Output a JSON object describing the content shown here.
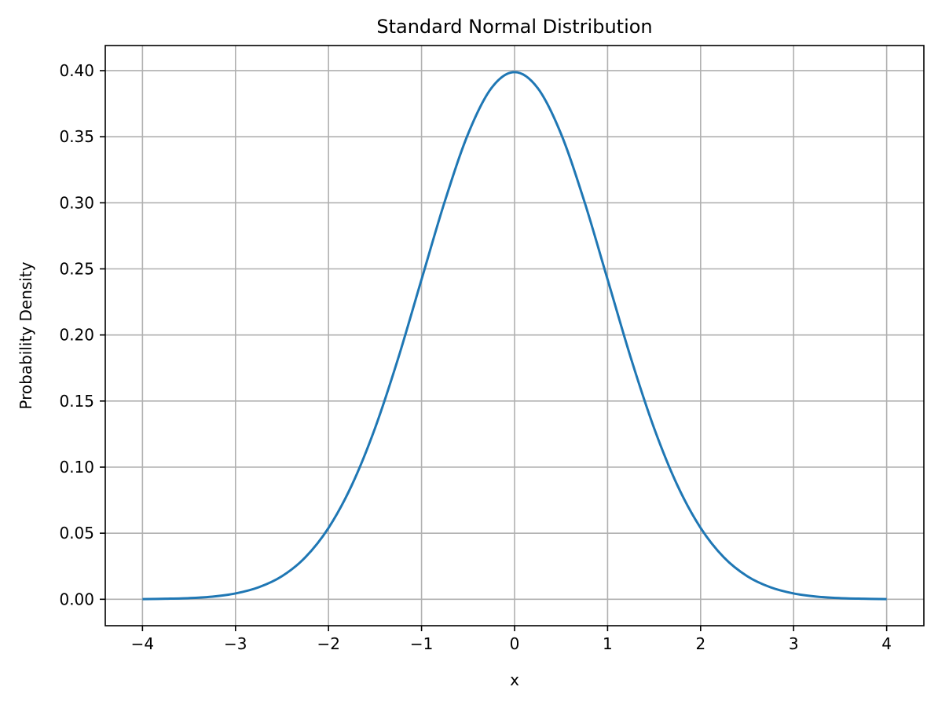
{
  "chart_data": {
    "type": "line",
    "title": "Standard Normal Distribution",
    "xlabel": "x",
    "ylabel": "Probability Density",
    "xlim": [
      -4.4,
      4.4
    ],
    "ylim": [
      -0.02,
      0.419
    ],
    "xticks": [
      -4,
      -3,
      -2,
      -1,
      0,
      1,
      2,
      3,
      4
    ],
    "xtick_labels": [
      "−4",
      "−3",
      "−2",
      "−1",
      "0",
      "1",
      "2",
      "3",
      "4"
    ],
    "yticks": [
      0.0,
      0.05,
      0.1,
      0.15,
      0.2,
      0.25,
      0.3,
      0.35,
      0.4
    ],
    "ytick_labels": [
      "0.00",
      "0.05",
      "0.10",
      "0.15",
      "0.20",
      "0.25",
      "0.30",
      "0.35",
      "0.40"
    ],
    "grid": true,
    "series": [
      {
        "color": "#1f77b4",
        "x": [
          -4.0,
          -3.75,
          -3.5,
          -3.25,
          -3.0,
          -2.75,
          -2.5,
          -2.25,
          -2.0,
          -1.75,
          -1.5,
          -1.25,
          -1.0,
          -0.75,
          -0.5,
          -0.25,
          0.0,
          0.25,
          0.5,
          0.75,
          1.0,
          1.25,
          1.5,
          1.75,
          2.0,
          2.25,
          2.5,
          2.75,
          3.0,
          3.25,
          3.5,
          3.75,
          4.0
        ],
        "y": [
          0.0001,
          0.0004,
          0.0009,
          0.002,
          0.0044,
          0.0091,
          0.0175,
          0.0317,
          0.054,
          0.0863,
          0.1295,
          0.1826,
          0.242,
          0.3011,
          0.3521,
          0.3867,
          0.3989,
          0.3867,
          0.3521,
          0.3011,
          0.242,
          0.1826,
          0.1295,
          0.0863,
          0.054,
          0.0317,
          0.0175,
          0.0091,
          0.0044,
          0.002,
          0.0009,
          0.0004,
          0.0001
        ]
      }
    ]
  }
}
